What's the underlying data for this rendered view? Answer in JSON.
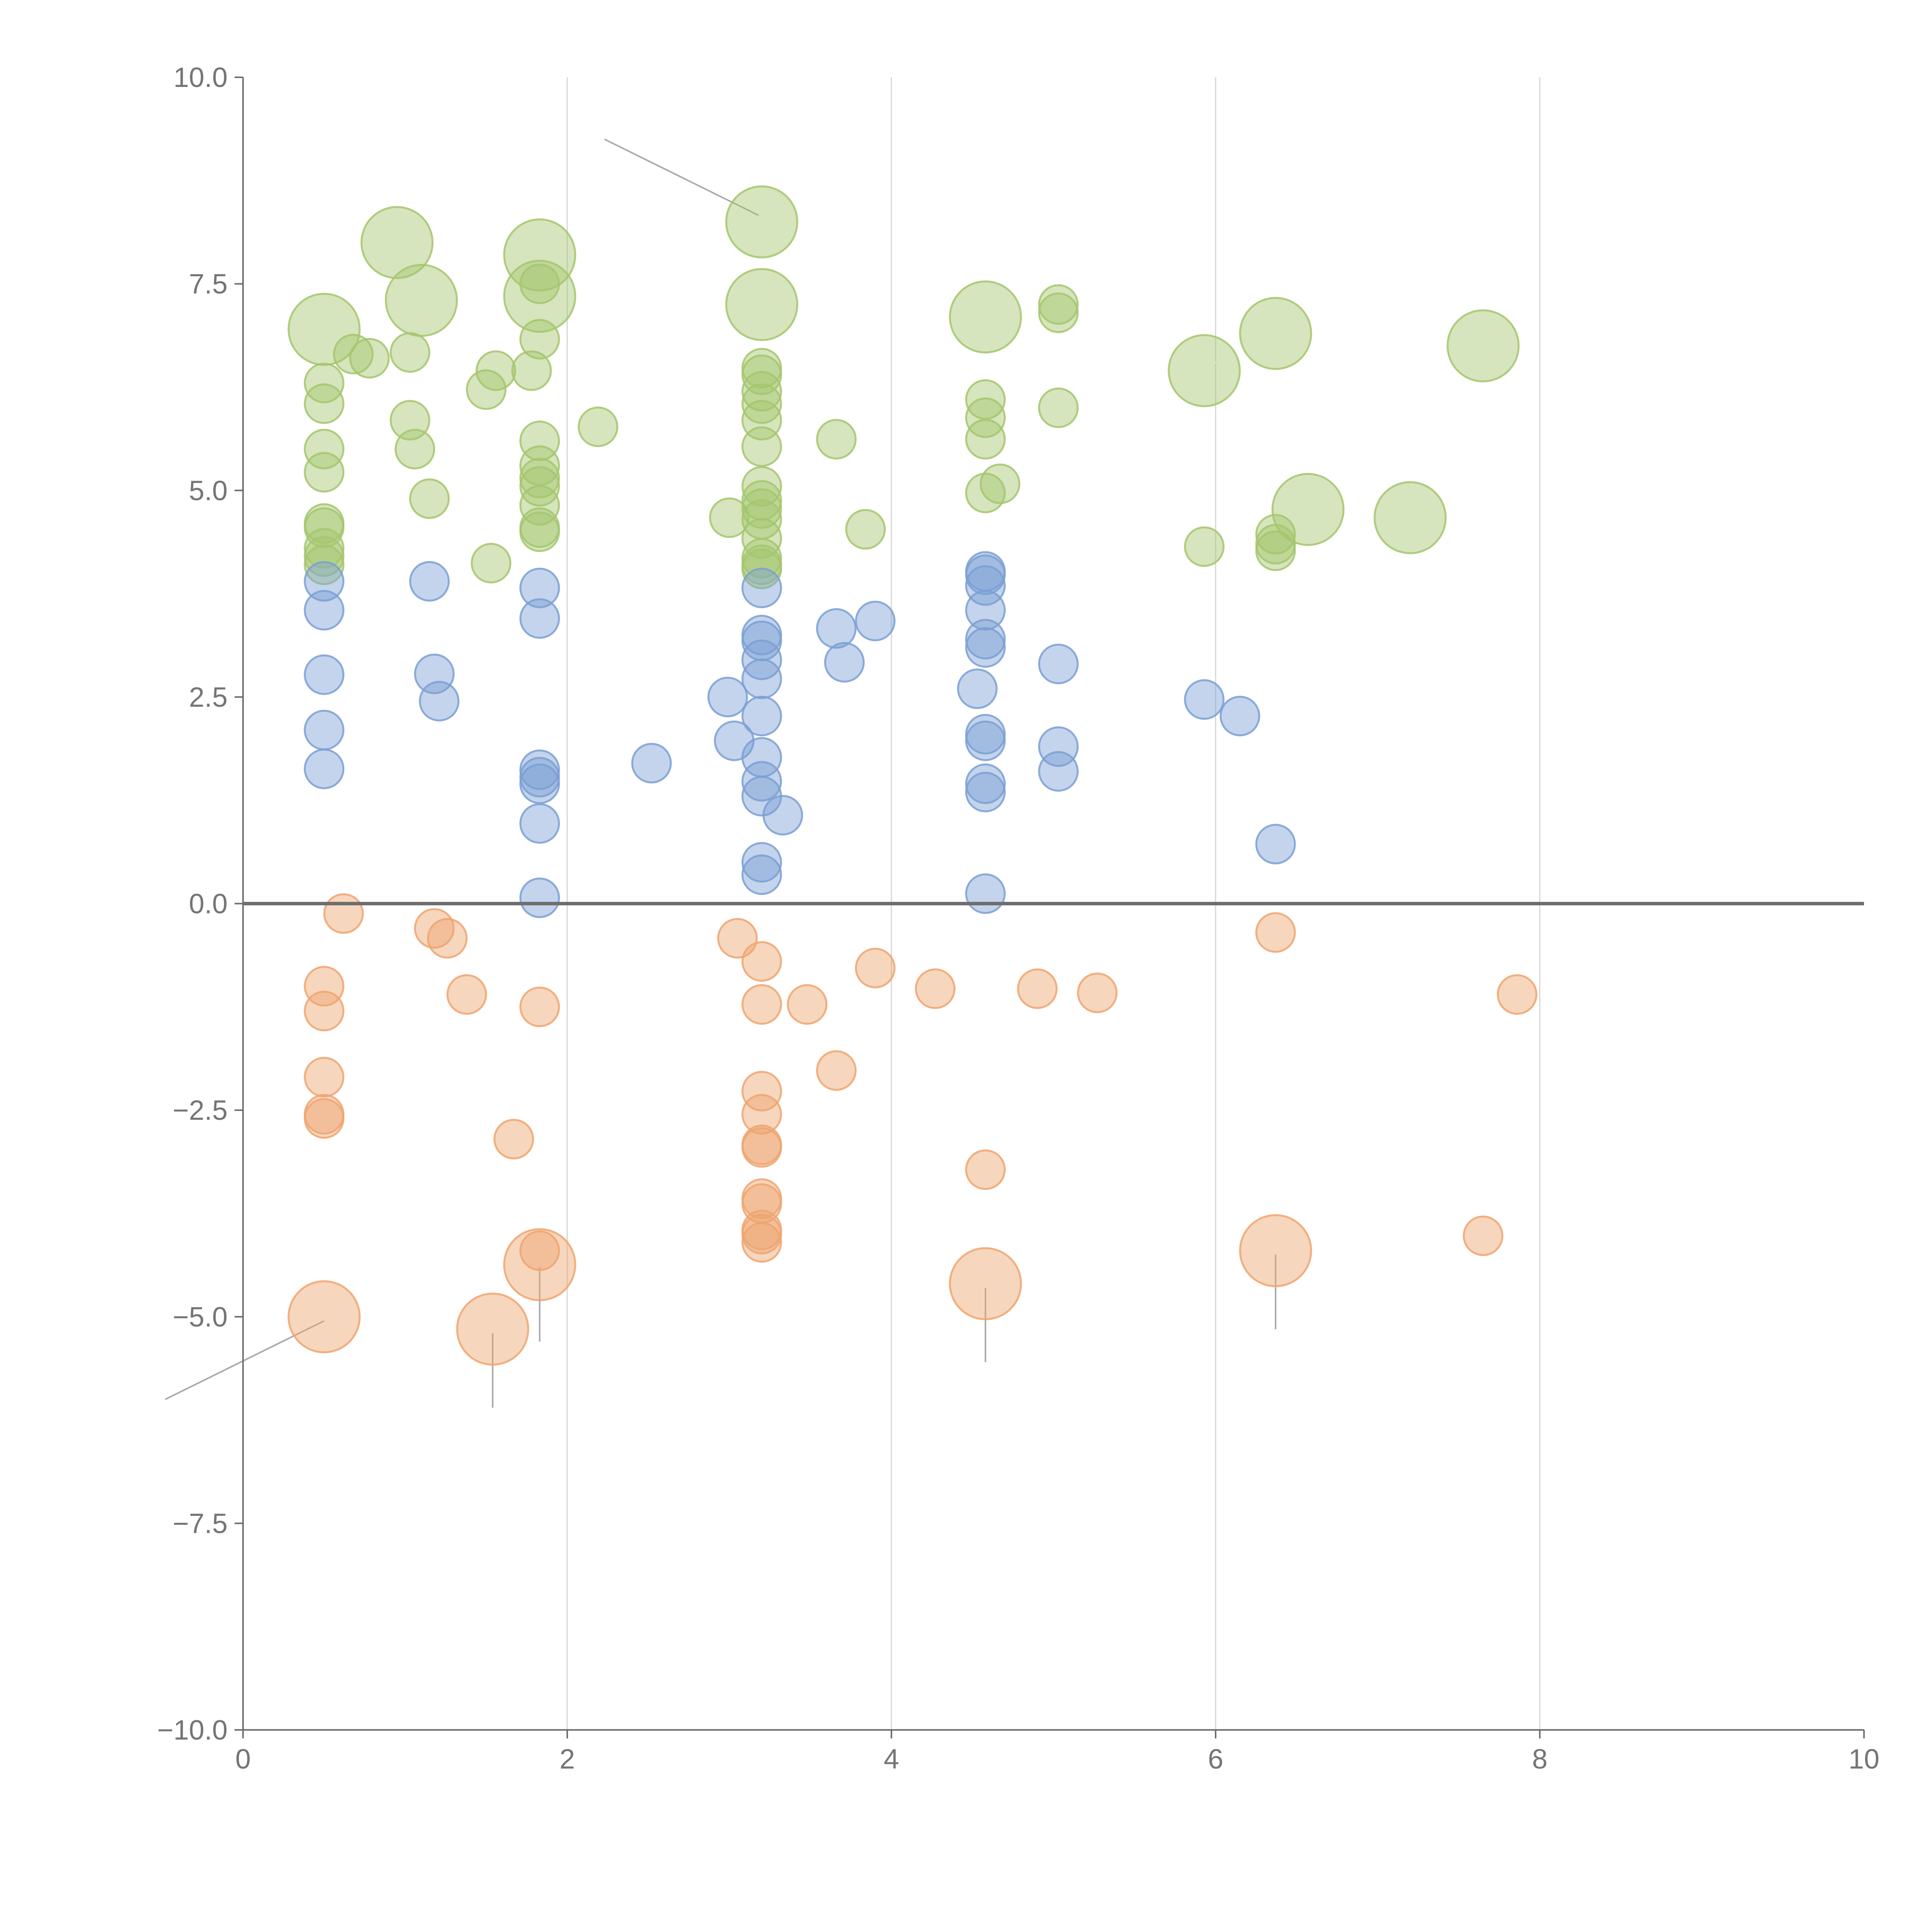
{
  "chart_data": {
    "type": "scatter",
    "subtype": "bubble",
    "title": "",
    "xlabel": "",
    "ylabel": "",
    "xlim": [
      0,
      10
    ],
    "ylim": [
      -10,
      10
    ],
    "x_ticks": [
      "0",
      "2",
      "4",
      "6",
      "8",
      "10"
    ],
    "x_tick_values": [
      0,
      2,
      4,
      6,
      8,
      10
    ],
    "y_ticks": [
      "10.0",
      "7.5",
      "5.0",
      "2.5",
      "0.0",
      "−2.5",
      "−5.0",
      "−7.5",
      "−10.0"
    ],
    "y_tick_values": [
      10,
      7.5,
      5,
      2.5,
      0,
      -2.5,
      -5,
      -7.5,
      -10
    ],
    "grid": "vertical",
    "reference_line_y": 0,
    "legend": "none",
    "colors": {
      "green": "#a4c66d",
      "blue": "#7b9fd4",
      "orange": "#eea56f",
      "axis": "#6e6e6e",
      "grid": "#d6d6d6",
      "leader": "#a9a9a9"
    },
    "series": [
      {
        "name": "green",
        "color": "#a4c66d",
        "points": [
          [
            0.5,
            6.95,
            2
          ],
          [
            0.95,
            8.0,
            2
          ],
          [
            1.1,
            7.3,
            2
          ],
          [
            1.83,
            7.85,
            2
          ],
          [
            1.83,
            7.35,
            2
          ],
          [
            3.2,
            8.25,
            2
          ],
          [
            3.2,
            7.25,
            2
          ],
          [
            4.58,
            7.1,
            2
          ],
          [
            5.93,
            6.45,
            2
          ],
          [
            6.37,
            6.9,
            2
          ],
          [
            6.57,
            4.77,
            2
          ],
          [
            7.2,
            4.67,
            2
          ],
          [
            7.65,
            6.75,
            2
          ],
          [
            0.5,
            6.3,
            1
          ],
          [
            0.5,
            6.05,
            1
          ],
          [
            0.5,
            5.5,
            1
          ],
          [
            0.5,
            5.22,
            1
          ],
          [
            0.5,
            4.6,
            1
          ],
          [
            0.5,
            4.55,
            1
          ],
          [
            0.5,
            4.3,
            1
          ],
          [
            0.5,
            4.2,
            1
          ],
          [
            0.5,
            4.1,
            1
          ],
          [
            0.68,
            6.65,
            1
          ],
          [
            0.78,
            6.6,
            1
          ],
          [
            1.03,
            6.67,
            1
          ],
          [
            1.03,
            5.85,
            1
          ],
          [
            1.06,
            5.5,
            1
          ],
          [
            1.15,
            4.9,
            1
          ],
          [
            1.5,
            6.22,
            1
          ],
          [
            1.53,
            4.12,
            1
          ],
          [
            1.56,
            6.45,
            1
          ],
          [
            1.78,
            6.45,
            1
          ],
          [
            1.83,
            7.5,
            1
          ],
          [
            1.83,
            6.83,
            1
          ],
          [
            1.83,
            5.6,
            1
          ],
          [
            1.83,
            5.3,
            1
          ],
          [
            1.83,
            5.15,
            1
          ],
          [
            1.83,
            5.05,
            1
          ],
          [
            1.83,
            4.82,
            1
          ],
          [
            1.83,
            4.55,
            1
          ],
          [
            1.83,
            4.5,
            1
          ],
          [
            2.19,
            5.77,
            1
          ],
          [
            3.0,
            4.67,
            1
          ],
          [
            3.2,
            6.48,
            1
          ],
          [
            3.2,
            6.4,
            1
          ],
          [
            3.2,
            6.2,
            1
          ],
          [
            3.2,
            6.05,
            1
          ],
          [
            3.2,
            5.85,
            1
          ],
          [
            3.2,
            5.53,
            1
          ],
          [
            3.2,
            5.05,
            1
          ],
          [
            3.2,
            4.88,
            1
          ],
          [
            3.2,
            4.78,
            1
          ],
          [
            3.2,
            4.65,
            1
          ],
          [
            3.2,
            4.42,
            1
          ],
          [
            3.2,
            4.18,
            1
          ],
          [
            3.2,
            4.1,
            1
          ],
          [
            3.2,
            4.05,
            1
          ],
          [
            3.66,
            5.62,
            1
          ],
          [
            3.84,
            4.53,
            1
          ],
          [
            4.58,
            6.1,
            1
          ],
          [
            4.58,
            5.88,
            1
          ],
          [
            4.58,
            5.62,
            1
          ],
          [
            4.58,
            4.97,
            1
          ],
          [
            4.67,
            5.08,
            1
          ],
          [
            5.03,
            7.25,
            1
          ],
          [
            5.03,
            7.15,
            1
          ],
          [
            5.03,
            6.0,
            1
          ],
          [
            5.93,
            4.32,
            1
          ],
          [
            6.37,
            4.47,
            1
          ],
          [
            6.37,
            4.35,
            1
          ],
          [
            6.37,
            4.27,
            1
          ]
        ]
      },
      {
        "name": "blue",
        "color": "#7b9fd4",
        "points": [
          [
            0.5,
            3.9,
            1
          ],
          [
            0.5,
            3.55,
            1
          ],
          [
            0.5,
            2.77,
            1
          ],
          [
            0.5,
            2.1,
            1
          ],
          [
            0.5,
            1.63,
            1
          ],
          [
            1.15,
            3.9,
            1
          ],
          [
            1.18,
            2.78,
            1
          ],
          [
            1.21,
            2.45,
            1
          ],
          [
            1.83,
            3.82,
            1
          ],
          [
            1.83,
            3.45,
            1
          ],
          [
            1.83,
            1.62,
            1
          ],
          [
            1.83,
            1.53,
            1
          ],
          [
            1.83,
            1.45,
            1
          ],
          [
            1.83,
            0.97,
            1
          ],
          [
            1.83,
            0.07,
            1
          ],
          [
            2.52,
            1.7,
            1
          ],
          [
            2.99,
            2.5,
            1
          ],
          [
            3.03,
            1.97,
            1
          ],
          [
            3.2,
            3.82,
            1
          ],
          [
            3.2,
            3.25,
            1
          ],
          [
            3.2,
            3.18,
            1
          ],
          [
            3.2,
            2.95,
            1
          ],
          [
            3.2,
            2.72,
            1
          ],
          [
            3.2,
            2.27,
            1
          ],
          [
            3.2,
            1.77,
            1
          ],
          [
            3.2,
            1.48,
            1
          ],
          [
            3.2,
            1.3,
            1
          ],
          [
            3.33,
            1.07,
            1
          ],
          [
            3.2,
            0.5,
            1
          ],
          [
            3.2,
            0.35,
            1
          ],
          [
            3.66,
            3.33,
            1
          ],
          [
            3.71,
            2.92,
            1
          ],
          [
            3.9,
            3.42,
            1
          ],
          [
            4.53,
            2.6,
            1
          ],
          [
            4.58,
            4.02,
            1
          ],
          [
            4.58,
            3.98,
            1
          ],
          [
            4.58,
            3.85,
            1
          ],
          [
            4.58,
            3.55,
            1
          ],
          [
            4.58,
            3.2,
            1
          ],
          [
            4.58,
            3.1,
            1
          ],
          [
            4.58,
            2.05,
            1
          ],
          [
            4.58,
            1.97,
            1
          ],
          [
            4.58,
            1.45,
            1
          ],
          [
            4.58,
            1.35,
            1
          ],
          [
            4.58,
            0.12,
            1
          ],
          [
            5.03,
            2.9,
            1
          ],
          [
            5.03,
            1.9,
            1
          ],
          [
            5.03,
            1.6,
            1
          ],
          [
            5.93,
            2.47,
            1
          ],
          [
            6.15,
            2.27,
            1
          ],
          [
            6.37,
            0.72,
            1
          ]
        ]
      },
      {
        "name": "orange",
        "color": "#eea56f",
        "points": [
          [
            0.5,
            -5.0,
            2
          ],
          [
            1.54,
            -5.15,
            2
          ],
          [
            1.83,
            -4.37,
            2
          ],
          [
            4.58,
            -4.6,
            2
          ],
          [
            6.37,
            -4.2,
            2
          ],
          [
            0.62,
            -0.12,
            1
          ],
          [
            1.18,
            -0.3,
            1
          ],
          [
            1.26,
            -0.42,
            1
          ],
          [
            1.38,
            -1.1,
            1
          ],
          [
            0.5,
            -1.0,
            1
          ],
          [
            0.5,
            -1.3,
            1
          ],
          [
            0.5,
            -2.1,
            1
          ],
          [
            0.5,
            -2.55,
            1
          ],
          [
            0.5,
            -2.6,
            1
          ],
          [
            1.67,
            -2.85,
            1
          ],
          [
            1.83,
            -1.25,
            1
          ],
          [
            1.83,
            -4.2,
            1
          ],
          [
            3.05,
            -0.42,
            1
          ],
          [
            3.2,
            -0.7,
            1
          ],
          [
            3.2,
            -1.22,
            1
          ],
          [
            3.48,
            -1.22,
            1
          ],
          [
            3.2,
            -2.27,
            1
          ],
          [
            3.2,
            -2.55,
            1
          ],
          [
            3.2,
            -2.92,
            1
          ],
          [
            3.2,
            -2.95,
            1
          ],
          [
            3.2,
            -3.57,
            1
          ],
          [
            3.2,
            -3.63,
            1
          ],
          [
            3.2,
            -3.95,
            1
          ],
          [
            3.2,
            -4.0,
            1
          ],
          [
            3.2,
            -4.1,
            1
          ],
          [
            3.66,
            -2.02,
            1
          ],
          [
            3.9,
            -0.78,
            1
          ],
          [
            4.27,
            -1.03,
            1
          ],
          [
            4.58,
            -3.22,
            1
          ],
          [
            4.9,
            -1.03,
            1
          ],
          [
            5.27,
            -1.08,
            1
          ],
          [
            6.37,
            -0.35,
            1
          ],
          [
            7.65,
            -4.02,
            1
          ],
          [
            7.86,
            -1.1,
            1
          ]
        ]
      }
    ],
    "point_format": [
      "x",
      "y",
      "size_level"
    ]
  }
}
